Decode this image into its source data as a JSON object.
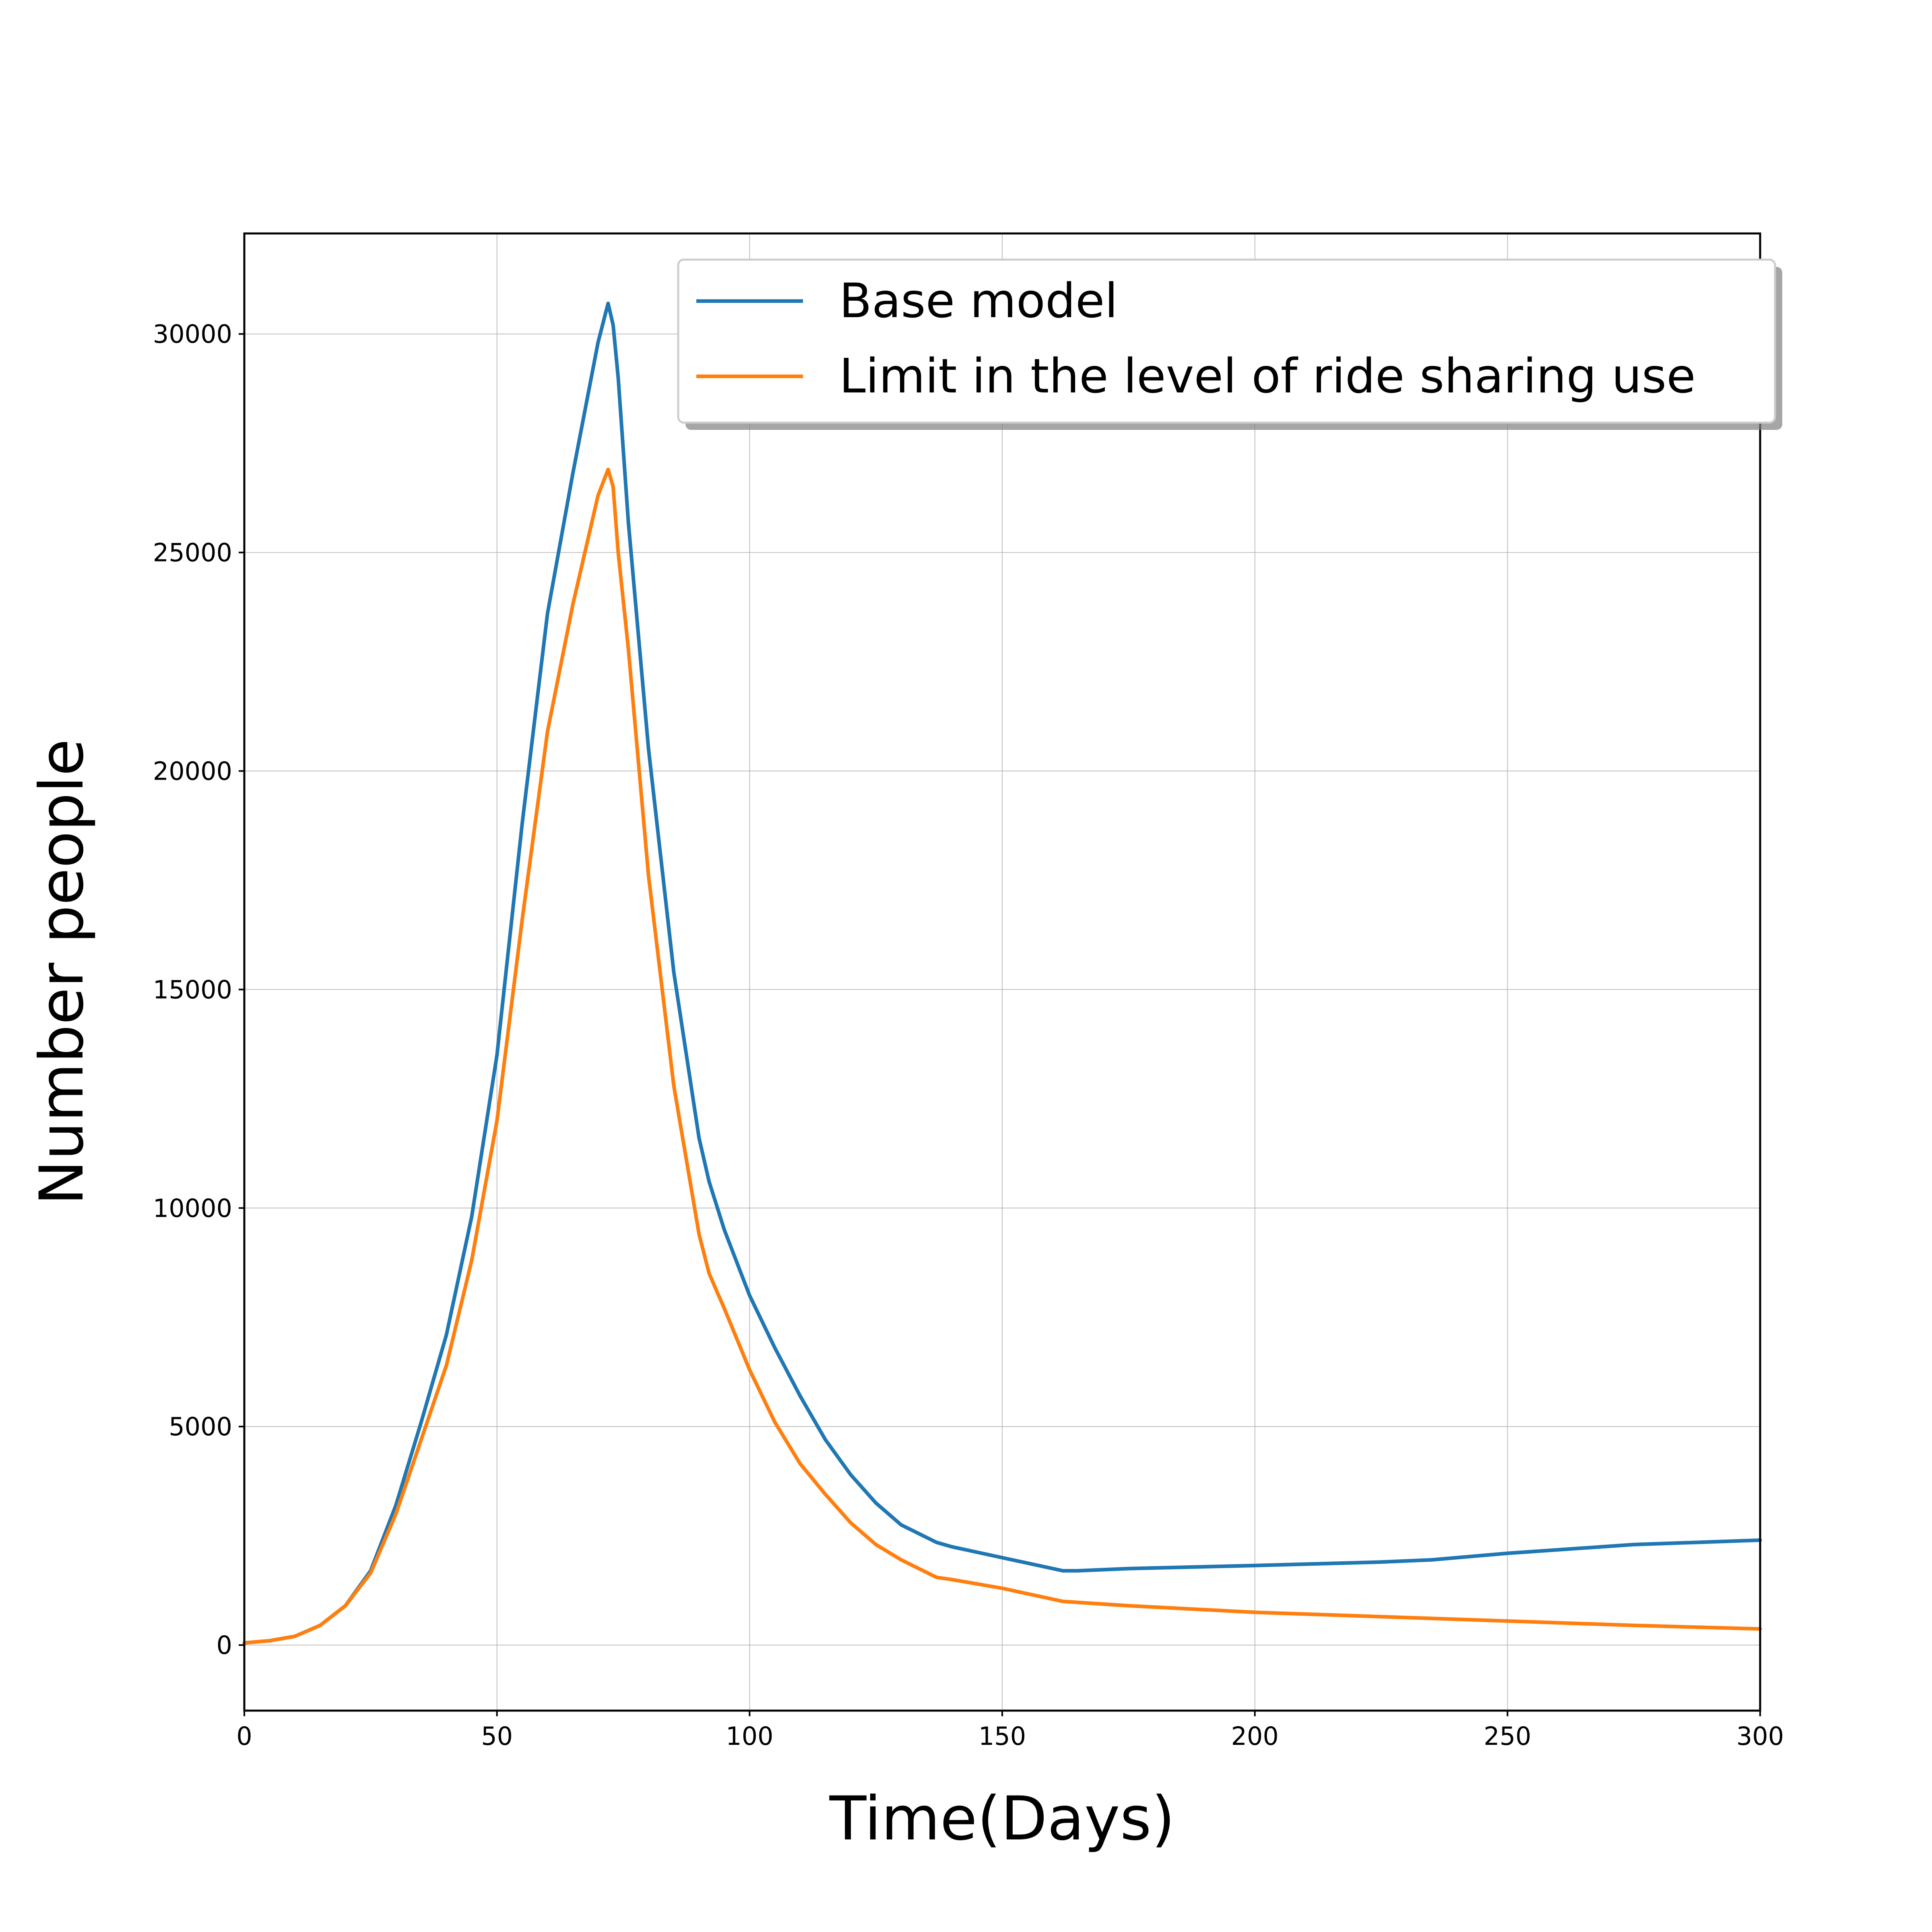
{
  "chart_data": {
    "type": "line",
    "title": "",
    "xlabel": "Time(Days)",
    "ylabel": "Number people",
    "xlim": [
      0,
      300
    ],
    "ylim": [
      -1500,
      32300
    ],
    "xticks": [
      0,
      50,
      100,
      150,
      200,
      250,
      300
    ],
    "yticks": [
      0,
      5000,
      10000,
      15000,
      20000,
      25000,
      30000
    ],
    "xtick_labels": [
      "0",
      "50",
      "100",
      "150",
      "200",
      "250",
      "300"
    ],
    "ytick_labels": [
      "0",
      "5000",
      "10000",
      "15000",
      "20000",
      "25000",
      "30000"
    ],
    "grid": true,
    "legend": "top-right",
    "series": [
      {
        "name": "Base model",
        "color": "#1f77b4",
        "x": [
          0,
          5,
          10,
          15,
          20,
          25,
          30,
          35,
          40,
          45,
          50,
          55,
          60,
          65,
          70,
          72,
          73,
          74,
          76,
          80,
          85,
          90,
          92,
          95,
          100,
          105,
          110,
          115,
          120,
          125,
          130,
          137,
          140,
          150,
          162,
          165,
          175,
          200,
          225,
          235,
          250,
          275,
          300
        ],
        "y": [
          50,
          100,
          200,
          450,
          900,
          1700,
          3200,
          5100,
          7100,
          9800,
          13500,
          18800,
          23600,
          26800,
          29800,
          30700,
          30200,
          29000,
          25700,
          20500,
          15400,
          11600,
          10600,
          9500,
          8000,
          6800,
          5700,
          4700,
          3900,
          3250,
          2750,
          2350,
          2250,
          2000,
          1700,
          1700,
          1750,
          1820,
          1900,
          1950,
          2100,
          2300,
          2400
        ]
      },
      {
        "name": "Limit in the level of ride sharing use",
        "color": "#ff7f0e",
        "x": [
          0,
          5,
          10,
          15,
          20,
          25,
          30,
          35,
          40,
          45,
          50,
          55,
          60,
          65,
          70,
          72,
          73,
          74,
          76,
          80,
          85,
          90,
          92,
          95,
          100,
          105,
          110,
          115,
          120,
          125,
          130,
          137,
          140,
          150,
          162,
          175,
          200,
          225,
          250,
          275,
          300
        ],
        "y": [
          50,
          100,
          200,
          450,
          900,
          1650,
          3000,
          4700,
          6400,
          8800,
          12000,
          16600,
          20900,
          23800,
          26300,
          26900,
          26500,
          25000,
          22800,
          17600,
          12800,
          9400,
          8500,
          7700,
          6300,
          5100,
          4150,
          3450,
          2800,
          2300,
          1950,
          1550,
          1500,
          1300,
          1000,
          900,
          750,
          650,
          550,
          450,
          370
        ]
      }
    ]
  }
}
